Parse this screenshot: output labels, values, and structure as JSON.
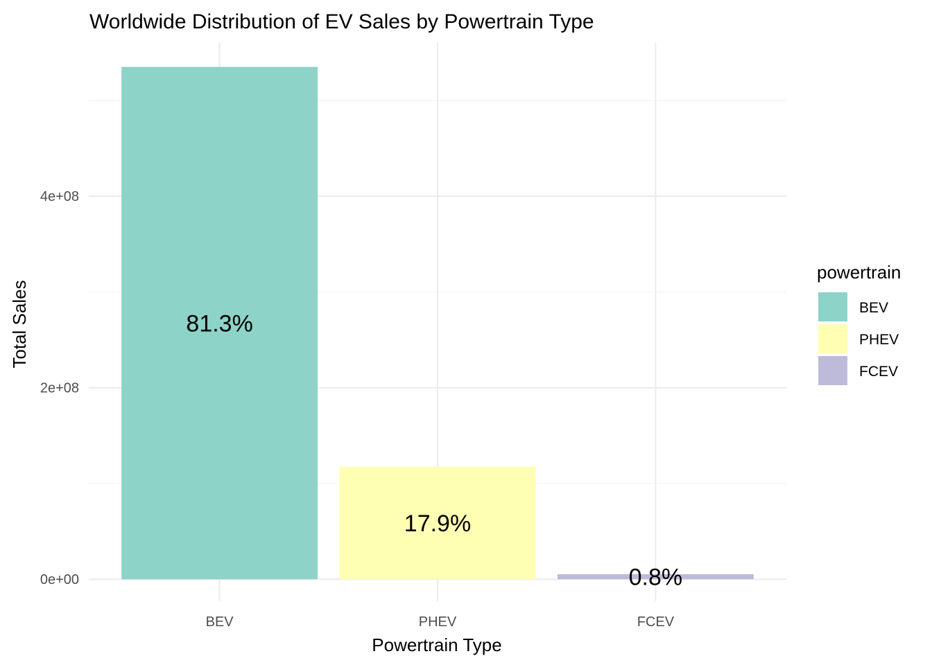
{
  "chart_data": {
    "type": "bar",
    "title": "Worldwide Distribution of EV Sales by Powertrain Type",
    "xlabel": "Powertrain Type",
    "ylabel": "Total Sales",
    "categories": [
      "BEV",
      "PHEV",
      "FCEV"
    ],
    "values": [
      535000000,
      117500000,
      5300000
    ],
    "data_labels": [
      "81.3%",
      "17.9%",
      "0.8%"
    ],
    "colors": [
      "#8dd3c7",
      "#ffffb3",
      "#bebada"
    ],
    "ylim": [
      -23000000,
      560000000
    ],
    "y_ticks": [
      0,
      200000000,
      400000000
    ],
    "y_tick_labels": [
      "0e+00",
      "2e+08",
      "4e+08"
    ],
    "grid": true,
    "legend": {
      "title": "powertrain",
      "position": "right",
      "entries": [
        "BEV",
        "PHEV",
        "FCEV"
      ]
    }
  }
}
